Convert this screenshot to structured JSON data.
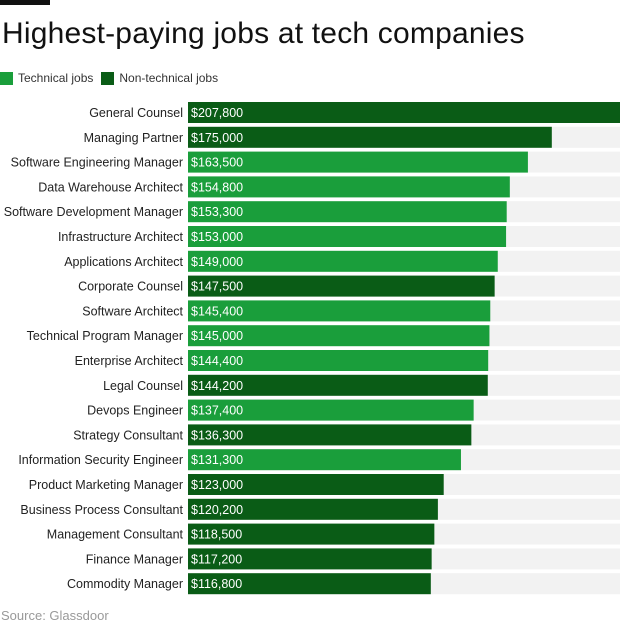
{
  "chart_data": {
    "type": "bar",
    "orientation": "horizontal",
    "title": "Highest-paying jobs at tech companies",
    "xlabel": "",
    "ylabel": "",
    "xlim": [
      0,
      207800
    ],
    "grid": false,
    "legend_position": "top-left",
    "legend": [
      {
        "key": "technical",
        "label": "Technical jobs",
        "color": "#1a9e3b"
      },
      {
        "key": "nontechnical",
        "label": "Non-technical jobs",
        "color": "#0a5c16"
      }
    ],
    "track_color": "#f2f2f2",
    "source": "Source: Glassdoor",
    "bars": [
      {
        "category": "General Counsel",
        "value": 207800,
        "label": "$207,800",
        "group": "nontechnical"
      },
      {
        "category": "Managing Partner",
        "value": 175000,
        "label": "$175,000",
        "group": "nontechnical"
      },
      {
        "category": "Software Engineering Manager",
        "value": 163500,
        "label": "$163,500",
        "group": "technical"
      },
      {
        "category": "Data Warehouse Architect",
        "value": 154800,
        "label": "$154,800",
        "group": "technical"
      },
      {
        "category": "Software Development Manager",
        "value": 153300,
        "label": "$153,300",
        "group": "technical"
      },
      {
        "category": "Infrastructure Architect",
        "value": 153000,
        "label": "$153,000",
        "group": "technical"
      },
      {
        "category": "Applications Architect",
        "value": 149000,
        "label": "$149,000",
        "group": "technical"
      },
      {
        "category": "Corporate Counsel",
        "value": 147500,
        "label": "$147,500",
        "group": "nontechnical"
      },
      {
        "category": "Software Architect",
        "value": 145400,
        "label": "$145,400",
        "group": "technical"
      },
      {
        "category": "Technical Program Manager",
        "value": 145000,
        "label": "$145,000",
        "group": "technical"
      },
      {
        "category": "Enterprise Architect",
        "value": 144400,
        "label": "$144,400",
        "group": "technical"
      },
      {
        "category": "Legal Counsel",
        "value": 144200,
        "label": "$144,200",
        "group": "nontechnical"
      },
      {
        "category": "Devops Engineer",
        "value": 137400,
        "label": "$137,400",
        "group": "technical"
      },
      {
        "category": "Strategy Consultant",
        "value": 136300,
        "label": "$136,300",
        "group": "nontechnical"
      },
      {
        "category": "Information Security Engineer",
        "value": 131300,
        "label": "$131,300",
        "group": "technical"
      },
      {
        "category": "Product Marketing Manager",
        "value": 123000,
        "label": "$123,000",
        "group": "nontechnical"
      },
      {
        "category": "Business Process Consultant",
        "value": 120200,
        "label": "$120,200",
        "group": "nontechnical"
      },
      {
        "category": "Management Consultant",
        "value": 118500,
        "label": "$118,500",
        "group": "nontechnical"
      },
      {
        "category": "Finance Manager",
        "value": 117200,
        "label": "$117,200",
        "group": "nontechnical"
      },
      {
        "category": "Commodity Manager",
        "value": 116800,
        "label": "$116,800",
        "group": "nontechnical"
      }
    ]
  }
}
